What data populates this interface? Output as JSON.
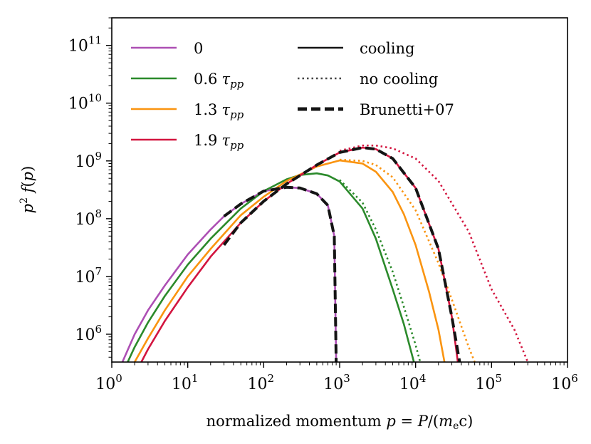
{
  "chart_data": {
    "type": "line",
    "title": "",
    "xlabel_parts": [
      "normalized momentum ",
      "p",
      " = ",
      "P",
      "/(",
      "m",
      "e",
      "c)"
    ],
    "ylabel_parts": [
      "p",
      "2",
      " f",
      "(",
      "p",
      ")"
    ],
    "xscale": "log",
    "yscale": "log",
    "xlim": [
      1,
      1000000
    ],
    "ylim": [
      330000,
      300000000000
    ],
    "xticks": [
      {
        "base": "10",
        "exp": "0",
        "value": 1
      },
      {
        "base": "10",
        "exp": "1",
        "value": 10
      },
      {
        "base": "10",
        "exp": "2",
        "value": 100
      },
      {
        "base": "10",
        "exp": "3",
        "value": 1000
      },
      {
        "base": "10",
        "exp": "4",
        "value": 10000
      },
      {
        "base": "10",
        "exp": "5",
        "value": 100000
      },
      {
        "base": "10",
        "exp": "6",
        "value": 1000000
      }
    ],
    "yticks": [
      {
        "base": "10",
        "exp": "6",
        "value": 1000000
      },
      {
        "base": "10",
        "exp": "7",
        "value": 10000000
      },
      {
        "base": "10",
        "exp": "8",
        "value": 100000000
      },
      {
        "base": "10",
        "exp": "9",
        "value": 1000000000
      },
      {
        "base": "10",
        "exp": "10",
        "value": 10000000000
      },
      {
        "base": "10",
        "exp": "11",
        "value": 100000000000
      }
    ],
    "colors": {
      "t0": "#ad4fb4",
      "t06": "#2b8a2b",
      "t13": "#fa9410",
      "t19": "#d3153f",
      "black": "#141414"
    },
    "legend_colors": [
      {
        "label": "0",
        "sub": "",
        "color": "#ad4fb4"
      },
      {
        "label": "0.6",
        "sub": "pp",
        "color": "#2b8a2b"
      },
      {
        "label": "1.3",
        "sub": "pp",
        "color": "#fa9410"
      },
      {
        "label": "1.9",
        "sub": "pp",
        "color": "#d3153f"
      }
    ],
    "legend_styles": [
      {
        "label": "cooling",
        "style": "solid"
      },
      {
        "label": "no cooling",
        "style": "dotted"
      },
      {
        "label": "Brunetti+07",
        "style": "dashed"
      }
    ],
    "series": [
      {
        "name": "0 (cooling)",
        "color": "#ad4fb4",
        "style": "solid",
        "x": [
          1.38,
          2,
          3,
          5,
          10,
          20,
          30,
          50,
          100,
          200,
          300,
          500,
          700,
          850,
          900
        ],
        "y": [
          330000.0,
          1000000.0,
          2600000.0,
          7000000.0,
          24000000.0,
          65000000.0,
          110000000.0,
          180000000.0,
          300000000.0,
          350000000.0,
          340000000.0,
          270000000.0,
          170000000.0,
          50000000.0,
          330000.0
        ]
      },
      {
        "name": "0.6 tau_pp (cooling)",
        "color": "#2b8a2b",
        "style": "solid",
        "x": [
          1.62,
          2,
          3,
          5,
          10,
          20,
          50,
          100,
          200,
          300,
          500,
          700,
          1000,
          2000,
          3000,
          5000,
          7000,
          9500
        ],
        "y": [
          330000.0,
          600000.0,
          1600000.0,
          4600000.0,
          16000000.0,
          45000000.0,
          150000000.0,
          300000000.0,
          480000000.0,
          570000000.0,
          610000000.0,
          560000000.0,
          440000000.0,
          150000000.0,
          45000000.0,
          6000000.0,
          1500000.0,
          330000.0
        ]
      },
      {
        "name": "0.6 tau_pp (no cooling)",
        "color": "#2b8a2b",
        "style": "dotted",
        "x": [
          1000,
          2000,
          3000,
          5000,
          7000,
          10000,
          11500
        ],
        "y": [
          470000000.0,
          190000000.0,
          65000000.0,
          12000000.0,
          3000000.0,
          650000.0,
          330000.0
        ]
      },
      {
        "name": "1.3 tau_pp (cooling)",
        "color": "#fa9410",
        "style": "solid",
        "x": [
          2.0,
          3,
          5,
          10,
          20,
          50,
          100,
          200,
          500,
          1000,
          2000,
          3000,
          5000,
          7000,
          10000,
          15000,
          20000,
          24000
        ],
        "y": [
          330000.0,
          850000.0,
          2600000.0,
          10000000.0,
          30000000.0,
          115000000.0,
          240000000.0,
          450000000.0,
          800000000.0,
          1020000000.0,
          900000000.0,
          650000000.0,
          290000000.0,
          120000000.0,
          35000000.0,
          5500000.0,
          1200000.0,
          330000.0
        ]
      },
      {
        "name": "1.3 tau_pp (no cooling)",
        "color": "#fa9410",
        "style": "dotted",
        "x": [
          1000,
          2000,
          3000,
          5000,
          10000,
          20000,
          30000,
          50000,
          60000
        ],
        "y": [
          1050000000.0,
          1000000000.0,
          850000000.0,
          520000000.0,
          140000000.0,
          17000000.0,
          4000000.0,
          600000.0,
          330000.0
        ]
      },
      {
        "name": "1.9 tau_pp (cooling)",
        "color": "#d3153f",
        "style": "solid",
        "x": [
          2.45,
          3,
          5,
          10,
          20,
          50,
          100,
          200,
          500,
          1000,
          2000,
          3000,
          5000,
          10000,
          20000,
          30000,
          36000
        ],
        "y": [
          330000.0,
          550000.0,
          1700000.0,
          6500000.0,
          22000000.0,
          85000000.0,
          200000000.0,
          400000000.0,
          850000000.0,
          1400000000.0,
          1700000000.0,
          1600000000.0,
          1100000000.0,
          340000000.0,
          30000000.0,
          2000000.0,
          330000.0
        ]
      },
      {
        "name": "1.9 tau_pp (no cooling)",
        "color": "#d3153f",
        "style": "dotted",
        "x": [
          1000,
          2000,
          3000,
          5000,
          10000,
          20000,
          50000,
          100000,
          200000,
          300000
        ],
        "y": [
          1500000000.0,
          1850000000.0,
          1850000000.0,
          1650000000.0,
          1100000000.0,
          450000000.0,
          60000000.0,
          6000000.0,
          1200000.0,
          330000.0
        ]
      },
      {
        "name": "Brunetti+07 (1)",
        "color": "#141414",
        "style": "dashed",
        "x": [
          30,
          50,
          100,
          200,
          300,
          500,
          700,
          850,
          900
        ],
        "y": [
          110000000.0,
          180000000.0,
          300000000.0,
          350000000.0,
          340000000.0,
          270000000.0,
          170000000.0,
          50000000.0,
          330000.0
        ]
      },
      {
        "name": "Brunetti+07 (2)",
        "color": "#141414",
        "style": "dashed",
        "x": [
          30,
          50,
          100,
          200,
          500,
          1000,
          2000,
          3000,
          5000,
          10000,
          20000,
          30000,
          38000
        ],
        "y": [
          35000000.0,
          85000000.0,
          200000000.0,
          400000000.0,
          850000000.0,
          1400000000.0,
          1700000000.0,
          1600000000.0,
          1100000000.0,
          340000000.0,
          30000000.0,
          2000000.0,
          330000.0
        ]
      }
    ]
  }
}
